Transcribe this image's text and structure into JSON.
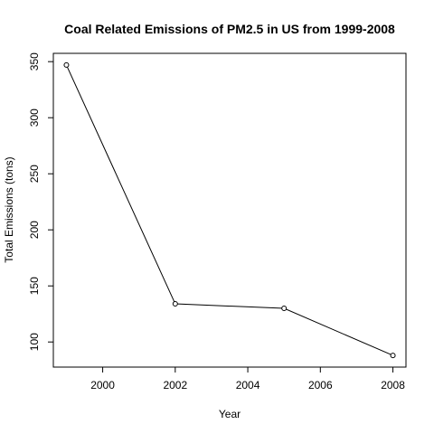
{
  "chart_data": {
    "type": "line",
    "title": "Coal Related Emissions of PM2.5 in US from 1999-2008",
    "xlabel": "Year",
    "ylabel": "Total Emissions (tons)",
    "x": [
      1999,
      2002,
      2005,
      2008
    ],
    "y": [
      347,
      134,
      130,
      88
    ],
    "xlim": [
      1998.64,
      2008.36
    ],
    "ylim": [
      77.6,
      357.4
    ],
    "xticks": [
      2000,
      2002,
      2004,
      2006,
      2008
    ],
    "yticks": [
      100,
      150,
      200,
      250,
      300,
      350
    ],
    "markers": "open-circle",
    "grid": false,
    "line_color": "#000000"
  }
}
